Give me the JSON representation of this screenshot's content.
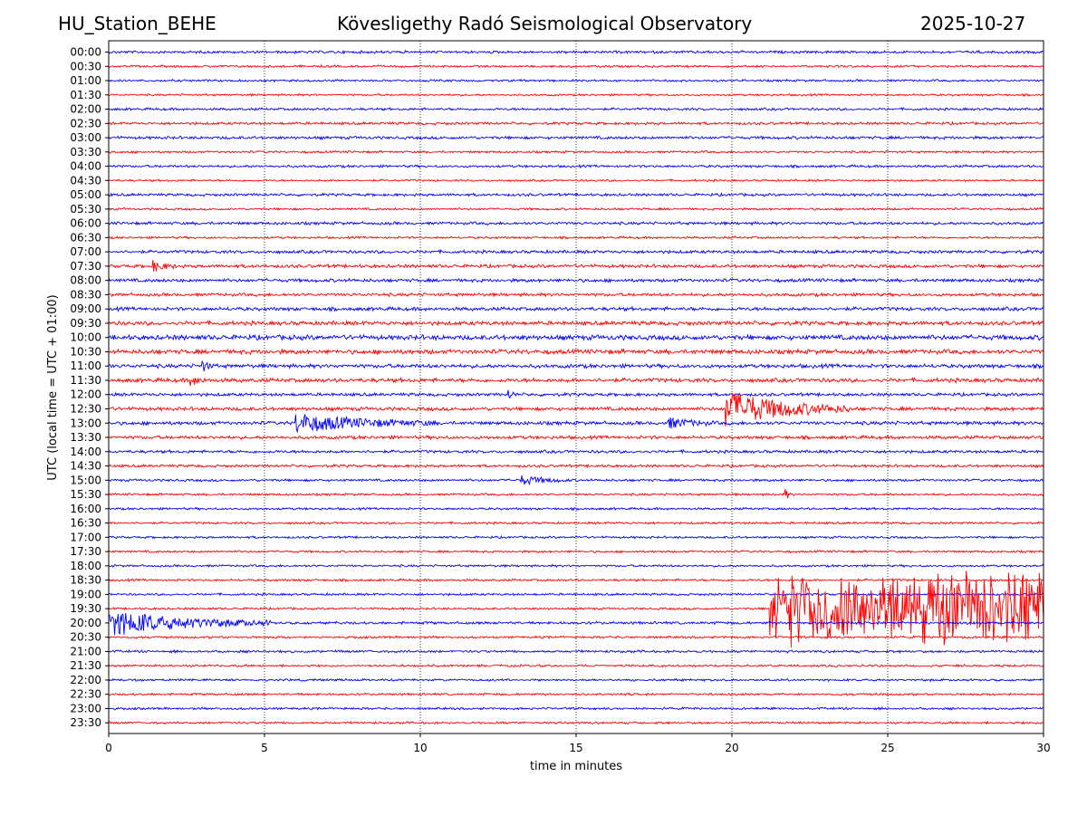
{
  "header": {
    "station": "HU_Station_BEHE",
    "observatory": "Kövesligethy Radó Seismological Observatory",
    "date": "2025-10-27"
  },
  "chart_data": {
    "type": "line",
    "title": "Kövesligethy Radó Seismological Observatory",
    "xlabel": "time in minutes",
    "ylabel": "UTC (local time = UTC + 01:00)",
    "xlim": [
      0,
      30
    ],
    "xticks": [
      0,
      5,
      10,
      15,
      20,
      25,
      30
    ],
    "grid": "vertical dotted at x ticks",
    "series_colors": [
      "#0000ff",
      "#ff0000"
    ],
    "rows": [
      "00:00",
      "00:30",
      "01:00",
      "01:30",
      "02:00",
      "02:30",
      "03:00",
      "03:30",
      "04:00",
      "04:30",
      "05:00",
      "05:30",
      "06:00",
      "06:30",
      "07:00",
      "07:30",
      "08:00",
      "08:30",
      "09:00",
      "09:30",
      "10:00",
      "10:30",
      "11:00",
      "11:30",
      "12:00",
      "12:30",
      "13:00",
      "13:30",
      "14:00",
      "14:30",
      "15:00",
      "15:30",
      "16:00",
      "16:30",
      "17:00",
      "17:30",
      "18:00",
      "18:30",
      "19:00",
      "19:30",
      "20:00",
      "20:30",
      "21:00",
      "21:30",
      "22:00",
      "22:30",
      "23:00",
      "23:30"
    ],
    "noise_levels": [
      1.2,
      1.0,
      1.0,
      0.9,
      1.1,
      1.2,
      1.3,
      1.0,
      1.1,
      0.9,
      1.2,
      1.0,
      1.3,
      1.0,
      1.4,
      1.5,
      1.5,
      1.4,
      1.6,
      1.8,
      2.2,
      2.0,
      1.7,
      1.8,
      1.4,
      1.6,
      1.6,
      1.5,
      1.3,
      1.2,
      1.1,
      1.0,
      1.0,
      1.0,
      1.0,
      1.0,
      1.0,
      1.0,
      1.0,
      1.0,
      1.2,
      1.0,
      1.1,
      1.0,
      1.0,
      1.0,
      1.0,
      1.0
    ],
    "events": [
      {
        "row": "07:30",
        "start_min": 1.4,
        "duration_min": 0.8,
        "amplitude": 6
      },
      {
        "row": "11:00",
        "start_min": 3.0,
        "duration_min": 0.4,
        "amplitude": 6
      },
      {
        "row": "11:30",
        "start_min": 2.6,
        "duration_min": 0.6,
        "amplitude": 6
      },
      {
        "row": "12:00",
        "start_min": 12.8,
        "duration_min": 0.3,
        "amplitude": 6
      },
      {
        "row": "12:30",
        "start_min": 19.8,
        "duration_min": 4.0,
        "amplitude": 20
      },
      {
        "row": "13:00",
        "start_min": 6.0,
        "duration_min": 4.5,
        "amplitude": 10
      },
      {
        "row": "13:00",
        "start_min": 17.9,
        "duration_min": 1.5,
        "amplitude": 6
      },
      {
        "row": "15:00",
        "start_min": 13.2,
        "duration_min": 1.6,
        "amplitude": 5
      },
      {
        "row": "15:30",
        "start_min": 21.7,
        "duration_min": 0.2,
        "amplitude": 8
      },
      {
        "row": "19:30",
        "start_min": 21.2,
        "duration_min": 8.8,
        "amplitude": 45
      },
      {
        "row": "20:00",
        "start_min": 0.0,
        "duration_min": 5.2,
        "amplitude": 14
      }
    ]
  }
}
